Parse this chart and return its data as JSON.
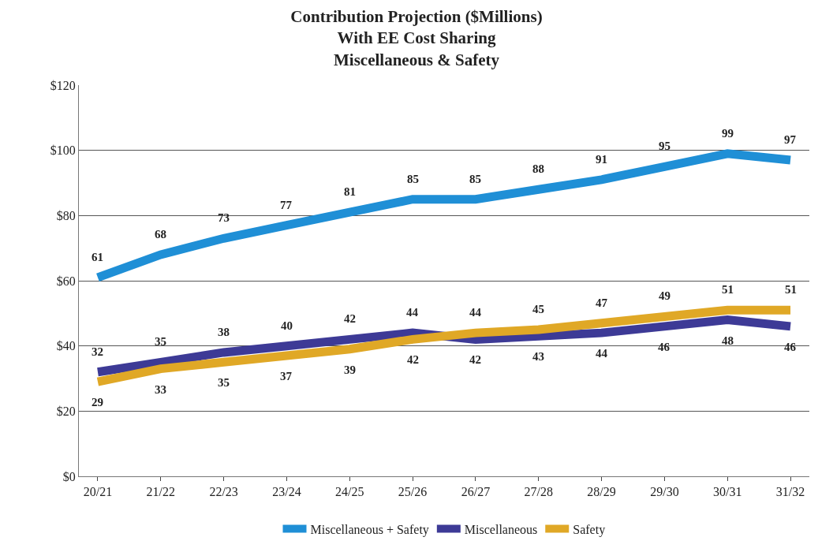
{
  "chart_data": {
    "type": "line",
    "title": "Contribution Projection ($Millions)\nWith EE Cost Sharing\nMiscellaneous & Safety",
    "categories": [
      "20/21",
      "21/22",
      "22/23",
      "23/24",
      "24/25",
      "25/26",
      "26/27",
      "27/28",
      "28/29",
      "29/30",
      "30/31",
      "31/32"
    ],
    "series": [
      {
        "name": "Miscellaneous + Safety",
        "color": "#1f8fd6",
        "values": [
          61,
          68,
          73,
          77,
          81,
          85,
          85,
          88,
          91,
          95,
          99,
          97
        ]
      },
      {
        "name": "Miscellaneous",
        "color": "#3d3a96",
        "values": [
          32,
          35,
          38,
          40,
          42,
          44,
          42,
          43,
          44,
          46,
          48,
          46
        ]
      },
      {
        "name": "Safety",
        "color": "#e0a826",
        "values": [
          29,
          33,
          35,
          37,
          39,
          42,
          44,
          45,
          47,
          49,
          51,
          51
        ]
      }
    ],
    "ylim": [
      0,
      120
    ],
    "yticks": [
      {
        "value": 0,
        "label": "$0"
      },
      {
        "value": 20,
        "label": "$20"
      },
      {
        "value": 40,
        "label": "$40"
      },
      {
        "value": 60,
        "label": "$60"
      },
      {
        "value": 80,
        "label": "$80"
      },
      {
        "value": 100,
        "label": "$100"
      },
      {
        "value": 120,
        "label": "$120"
      }
    ],
    "grid": "y",
    "legend": "bottom",
    "marker": "none",
    "line_style": "solid",
    "data_labels": true
  }
}
